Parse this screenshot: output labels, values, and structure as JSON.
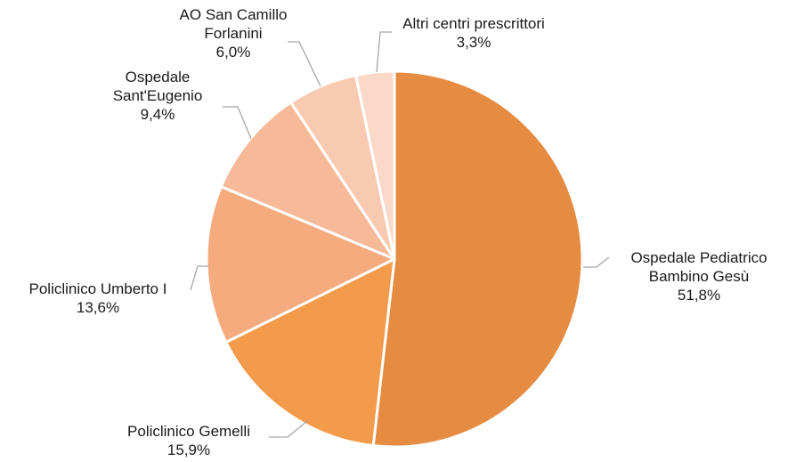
{
  "chart_data": {
    "type": "pie",
    "slices": [
      {
        "label_lines": [
          "Ospedale Pediatrico",
          "Bambino Gesù"
        ],
        "value_label": "51,8%",
        "value": 51.8,
        "color": "#e68c42"
      },
      {
        "label_lines": [
          "Policlinico Gemelli"
        ],
        "value_label": "15,9%",
        "value": 15.9,
        "color": "#f39a4b"
      },
      {
        "label_lines": [
          "Policlinico Umberto I"
        ],
        "value_label": "13,6%",
        "value": 13.6,
        "color": "#f5ab7e"
      },
      {
        "label_lines": [
          "Ospedale",
          "Sant'Eugenio"
        ],
        "value_label": "9,4%",
        "value": 9.4,
        "color": "#f7ba99"
      },
      {
        "label_lines": [
          "AO San Camillo",
          "Forlanini"
        ],
        "value_label": "6,0%",
        "value": 6.0,
        "color": "#f8cab2"
      },
      {
        "label_lines": [
          "Altri centri prescrittori"
        ],
        "value_label": "3,3%",
        "value": 3.3,
        "color": "#fad9c9"
      }
    ],
    "start_angle": "12 o'clock",
    "direction": "clockwise",
    "legend": "none"
  }
}
